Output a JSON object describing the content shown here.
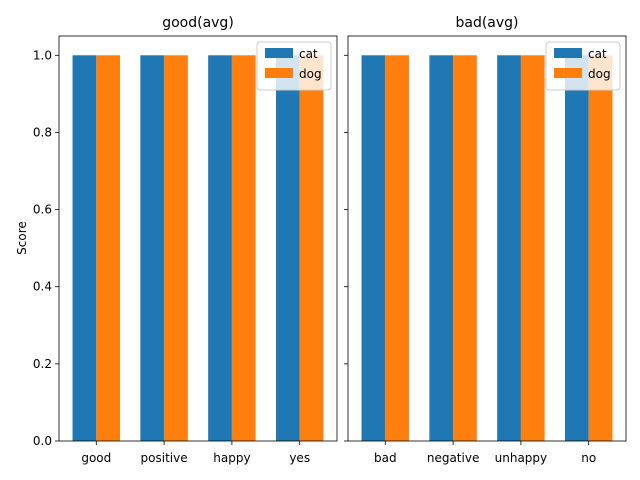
{
  "chart_data": [
    {
      "type": "bar",
      "title": "good(avg)",
      "xlabel": "",
      "ylabel": "Score",
      "categories": [
        "good",
        "positive",
        "happy",
        "yes"
      ],
      "series": [
        {
          "name": "cat",
          "values": [
            1.0,
            1.0,
            1.0,
            1.0
          ]
        },
        {
          "name": "dog",
          "values": [
            1.0,
            1.0,
            1.0,
            1.0
          ]
        }
      ],
      "ylim": [
        0,
        1.05
      ],
      "yticks": [
        "0.0",
        "0.2",
        "0.4",
        "0.6",
        "0.8",
        "1.0"
      ],
      "grid": false,
      "legend_position": "top-right"
    },
    {
      "type": "bar",
      "title": "bad(avg)",
      "xlabel": "",
      "ylabel": "",
      "categories": [
        "bad",
        "negative",
        "unhappy",
        "no"
      ],
      "series": [
        {
          "name": "cat",
          "values": [
            1.0,
            1.0,
            1.0,
            1.0
          ]
        },
        {
          "name": "dog",
          "values": [
            1.0,
            1.0,
            1.0,
            1.0
          ]
        }
      ],
      "ylim": [
        0,
        1.05
      ],
      "yticks": [],
      "grid": false,
      "legend_position": "top-right"
    }
  ],
  "colors": {
    "cat": "#1f77b4",
    "dog": "#ff7f0e"
  }
}
